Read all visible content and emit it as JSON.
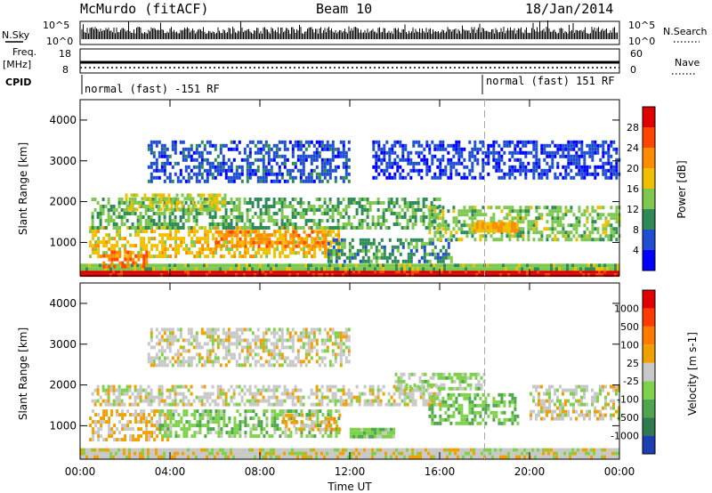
{
  "header": {
    "station": "McMurdo (fitACF)",
    "beam": "Beam 10",
    "date": "18/Jan/2014"
  },
  "strips": {
    "nsky_label": "N.Sky",
    "nsky_ticks": [
      "10^5",
      "10^0"
    ],
    "nsky_right_ticks": [
      "10^5",
      "10^0"
    ],
    "nsearch_label": "N.Search",
    "freq_label": "Freq.",
    "freq_unit": "[MHz]",
    "freq_ticks": [
      "18",
      "8"
    ],
    "nave_ticks": [
      "60",
      "0"
    ],
    "nave_label": "Nave",
    "cpid_label": "CPID",
    "cpid_segments": [
      {
        "label": "normal (fast) -151 RF",
        "start_hour": 0
      },
      {
        "label": "normal (fast) 151 RF",
        "start_hour": 18
      }
    ]
  },
  "chart_data": [
    {
      "type": "heatmap",
      "quantity": "Power",
      "ylabel": "Slant Range [km]",
      "yticks": [
        "1000",
        "2000",
        "3000",
        "4000"
      ],
      "ylim": [
        180,
        4500
      ],
      "xlim": [
        0,
        24
      ],
      "colorbar_label": "Power [dB]",
      "colorbar_ticks": [
        "28",
        "24",
        "20",
        "16",
        "12",
        "8",
        "4"
      ],
      "colorbar_colors": [
        "#0000ff",
        "#1f4fd0",
        "#2e8b57",
        "#7ec850",
        "#f0c000",
        "#ff8c00",
        "#ff4500",
        "#e00000"
      ],
      "colorbar_range": [
        0,
        32
      ],
      "bands": [
        {
          "x0": 0,
          "x1": 24,
          "y0": 200,
          "y1": 330,
          "v": 30
        },
        {
          "x0": 0,
          "x1": 24,
          "y0": 330,
          "y1": 480,
          "v": 14
        },
        {
          "x0": 0.4,
          "x1": 11.5,
          "y0": 700,
          "y1": 1400,
          "v": 18
        },
        {
          "x0": 1.0,
          "x1": 3.0,
          "y0": 450,
          "y1": 800,
          "v": 24
        },
        {
          "x0": 6.0,
          "x1": 11.0,
          "y0": 900,
          "y1": 1300,
          "v": 22
        },
        {
          "x0": 0.5,
          "x1": 16.0,
          "y0": 1400,
          "y1": 2100,
          "v": 12
        },
        {
          "x0": 2.0,
          "x1": 6.5,
          "y0": 1800,
          "y1": 2200,
          "v": 16
        },
        {
          "x0": 11.0,
          "x1": 16.5,
          "y0": 500,
          "y1": 1100,
          "v": 10
        },
        {
          "x0": 15.5,
          "x1": 24.0,
          "y0": 1100,
          "y1": 1900,
          "v": 14
        },
        {
          "x0": 17.5,
          "x1": 19.5,
          "y0": 1250,
          "y1": 1500,
          "v": 20
        },
        {
          "x0": 3.0,
          "x1": 12.0,
          "y0": 2500,
          "y1": 3500,
          "v": 6
        },
        {
          "x0": 13.0,
          "x1": 24.0,
          "y0": 2600,
          "y1": 3500,
          "v": 5
        }
      ]
    },
    {
      "type": "heatmap",
      "quantity": "Velocity",
      "ylabel": "Slant Range [km]",
      "yticks": [
        "1000",
        "2000",
        "3000",
        "4000"
      ],
      "ylim": [
        180,
        4500
      ],
      "xlim": [
        0,
        24
      ],
      "xticks": [
        "00:00",
        "04:00",
        "08:00",
        "12:00",
        "16:00",
        "20:00",
        "00:00"
      ],
      "xlabel": "Time UT",
      "colorbar_label": "Velocity [m s-1]",
      "colorbar_ticks": [
        "1000",
        "500",
        "100",
        "25",
        "-25",
        "-100",
        "-500",
        "-1000"
      ],
      "colorbar_colors": [
        "#1e3fb4",
        "#2f7d4f",
        "#4ea64e",
        "#7ed14a",
        "#c8c8c8",
        "#f0a000",
        "#ff7a00",
        "#ff3a00",
        "#e00000"
      ],
      "colorbar_range": [
        -1200,
        1200
      ],
      "bands": [
        {
          "x0": 0,
          "x1": 24,
          "y0": 200,
          "y1": 450,
          "v": 0
        },
        {
          "x0": 0.4,
          "x1": 4.0,
          "y0": 700,
          "y1": 1400,
          "v": 150
        },
        {
          "x0": 3.5,
          "x1": 11.5,
          "y0": 750,
          "y1": 1400,
          "v": -300
        },
        {
          "x0": 9.0,
          "x1": 11.5,
          "y0": 900,
          "y1": 1300,
          "v": 200
        },
        {
          "x0": 12.0,
          "x1": 14.0,
          "y0": 700,
          "y1": 950,
          "v": -300
        },
        {
          "x0": 15.5,
          "x1": 19.5,
          "y0": 1100,
          "y1": 1800,
          "v": -350
        },
        {
          "x0": 20.0,
          "x1": 24.0,
          "y0": 1200,
          "y1": 2000,
          "v": 0
        },
        {
          "x0": 0.5,
          "x1": 16.0,
          "y0": 1500,
          "y1": 2000,
          "v": 0
        },
        {
          "x0": 3.0,
          "x1": 12.0,
          "y0": 2500,
          "y1": 3400,
          "v": 0
        },
        {
          "x0": 14.0,
          "x1": 18.0,
          "y0": 1900,
          "y1": 2300,
          "v": -200
        }
      ]
    }
  ]
}
